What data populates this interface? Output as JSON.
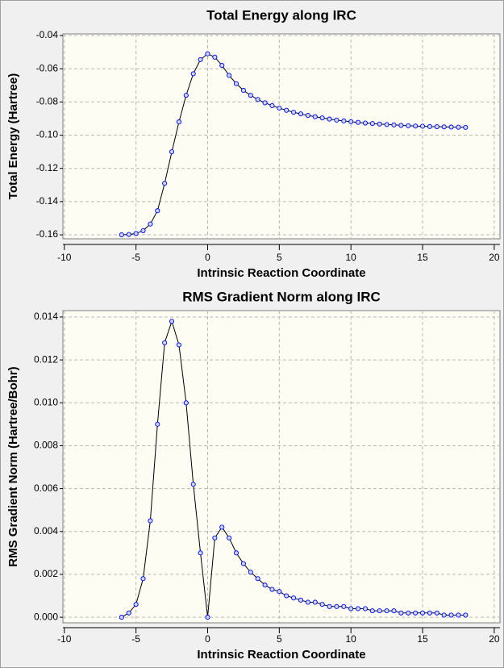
{
  "chart_data": [
    {
      "type": "line",
      "title": "Total Energy along IRC",
      "xlabel": "Intrinsic Reaction Coordinate",
      "ylabel": "Total Energy (Hartree)",
      "x": [
        -6,
        -5.5,
        -5,
        -4.5,
        -4,
        -3.5,
        -3,
        -2.5,
        -2,
        -1.5,
        -1,
        -0.5,
        0,
        0.5,
        1,
        1.5,
        2,
        2.5,
        3,
        3.5,
        4,
        4.5,
        5,
        5.5,
        6,
        6.5,
        7,
        7.5,
        8,
        8.5,
        9,
        9.5,
        10,
        10.5,
        11,
        11.5,
        12,
        12.5,
        13,
        13.5,
        14,
        14.5,
        15,
        15.5,
        16,
        16.5,
        17,
        17.5,
        18
      ],
      "values": [
        -0.16,
        -0.1598,
        -0.1592,
        -0.1575,
        -0.1535,
        -0.1455,
        -0.129,
        -0.11,
        -0.092,
        -0.076,
        -0.063,
        -0.0545,
        -0.051,
        -0.053,
        -0.058,
        -0.064,
        -0.069,
        -0.073,
        -0.076,
        -0.0785,
        -0.0805,
        -0.0822,
        -0.0837,
        -0.085,
        -0.0862,
        -0.0872,
        -0.0881,
        -0.0889,
        -0.0896,
        -0.0903,
        -0.0909,
        -0.0914,
        -0.0919,
        -0.0923,
        -0.0927,
        -0.093,
        -0.0933,
        -0.0936,
        -0.0938,
        -0.0941,
        -0.0943,
        -0.0945,
        -0.0946,
        -0.0948,
        -0.0949,
        -0.095,
        -0.0951,
        -0.0952,
        -0.0953
      ],
      "color": "#0000ff",
      "xlim": [
        -10.1,
        20.4
      ],
      "xticks": [
        -10,
        -5,
        0,
        5,
        10,
        15,
        20
      ],
      "ylim": [
        -0.1624,
        -0.039
      ],
      "yticks": [
        {
          "value": -0.16,
          "label": "-0.16"
        },
        {
          "value": -0.14,
          "label": "-0.14"
        },
        {
          "value": -0.12,
          "label": "-0.12"
        },
        {
          "value": -0.1,
          "label": "-0.10"
        },
        {
          "value": -0.08,
          "label": "-0.08"
        },
        {
          "value": -0.06,
          "label": "-0.06"
        },
        {
          "value": -0.04,
          "label": "-0.04"
        }
      ],
      "grid": true
    },
    {
      "type": "line",
      "title": "RMS Gradient Norm along IRC",
      "xlabel": "Intrinsic Reaction Coordinate",
      "ylabel": "RMS Gradient Norm (Hartree/Bohr)",
      "x": [
        -6,
        -5.5,
        -5,
        -4.5,
        -4,
        -3.5,
        -3,
        -2.5,
        -2,
        -1.5,
        -1,
        -0.5,
        0,
        0.5,
        1,
        1.5,
        2,
        2.5,
        3,
        3.5,
        4,
        4.5,
        5,
        5.5,
        6,
        6.5,
        7,
        7.5,
        8,
        8.5,
        9,
        9.5,
        10,
        10.5,
        11,
        11.5,
        12,
        12.5,
        13,
        13.5,
        14,
        14.5,
        15,
        15.5,
        16,
        16.5,
        17,
        17.5,
        18
      ],
      "values": [
        0.0,
        0.0002,
        0.0006,
        0.0018,
        0.0045,
        0.009,
        0.0128,
        0.0138,
        0.0127,
        0.01,
        0.0062,
        0.003,
        0.0,
        0.0037,
        0.0042,
        0.0037,
        0.003,
        0.0025,
        0.0021,
        0.0018,
        0.0015,
        0.0013,
        0.0012,
        0.001,
        0.0009,
        0.0008,
        0.0007,
        0.0007,
        0.0006,
        0.0005,
        0.0005,
        0.0005,
        0.0004,
        0.0004,
        0.0004,
        0.0003,
        0.0003,
        0.0003,
        0.0003,
        0.0002,
        0.0002,
        0.0002,
        0.0002,
        0.0002,
        0.0002,
        0.0001,
        0.0001,
        0.0001,
        0.0001
      ],
      "color": "#0000ff",
      "xlim": [
        -10.1,
        20.4
      ],
      "xticks": [
        -10,
        -5,
        0,
        5,
        10,
        15,
        20
      ],
      "ylim": [
        -0.00026,
        0.0143
      ],
      "yticks": [
        {
          "value": 0,
          "label": "0.000"
        },
        {
          "value": 0.002,
          "label": "0.002"
        },
        {
          "value": 0.004,
          "label": "0.004"
        },
        {
          "value": 0.006,
          "label": "0.006"
        },
        {
          "value": 0.008,
          "label": "0.008"
        },
        {
          "value": 0.01,
          "label": "0.010"
        },
        {
          "value": 0.012,
          "label": "0.012"
        },
        {
          "value": 0.014,
          "label": "0.014"
        }
      ],
      "grid": true
    }
  ]
}
